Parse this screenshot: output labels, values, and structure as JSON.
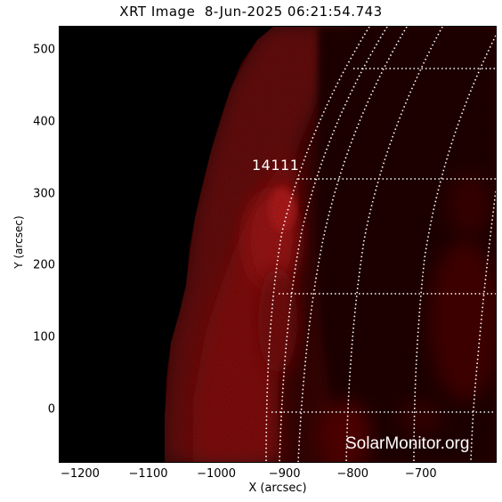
{
  "title": "XRT Image  8-Jun-2025 06:21:54.743",
  "x_axis": {
    "label": "X (arcsec)",
    "range": [
      -1230,
      -590
    ],
    "ticks": [
      {
        "value": -1200,
        "label": "−1200"
      },
      {
        "value": -1100,
        "label": "−1100"
      },
      {
        "value": -1000,
        "label": "−1000"
      },
      {
        "value": -900,
        "label": "−900"
      },
      {
        "value": -800,
        "label": "−800"
      },
      {
        "value": -700,
        "label": "−700"
      }
    ]
  },
  "y_axis": {
    "label": "Y (arcsec)",
    "range": [
      -73,
      532
    ],
    "ticks": [
      {
        "value": 0,
        "label": "0"
      },
      {
        "value": 100,
        "label": "100"
      },
      {
        "value": 200,
        "label": "200"
      },
      {
        "value": 300,
        "label": "300"
      },
      {
        "value": 400,
        "label": "400"
      },
      {
        "value": 500,
        "label": "500"
      }
    ]
  },
  "active_region": "14111",
  "watermark": "SolarMonitor.org",
  "colors": {
    "background": "#000000",
    "corona": "#8a0e0e",
    "grid": "#ffffff"
  }
}
